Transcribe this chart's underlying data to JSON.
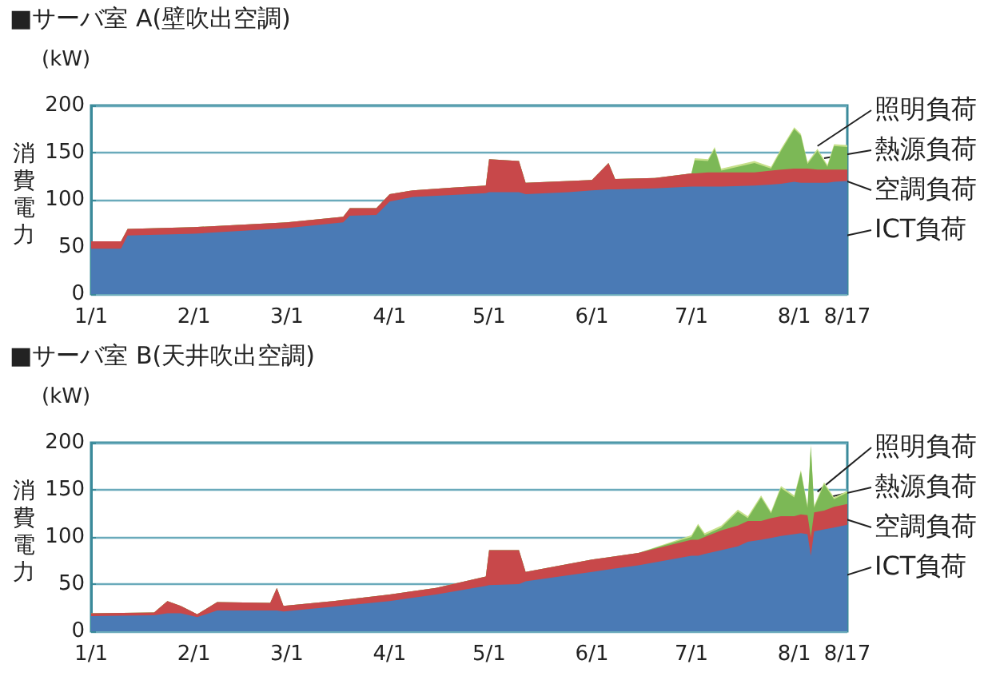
{
  "chart_data": [
    {
      "type": "area",
      "stacked": true,
      "title": "■サーバ室 A(壁吹出空調)",
      "ylabel": "消費電力",
      "annotations": [
        "(kW)"
      ],
      "x": [
        "--01-01",
        "--01-10",
        "--01-12",
        "--02-01",
        "--03-01",
        "--03-18",
        "--03-20",
        "--03-28",
        "--04-01",
        "--04-08",
        "--04-20",
        "--04-30",
        "--05-01",
        "--05-10",
        "--05-12",
        "--05-25",
        "--06-01",
        "--06-06",
        "--06-08",
        "--06-20",
        "--07-01",
        "--07-02",
        "--07-06",
        "--07-08",
        "--07-10",
        "--07-20",
        "--07-25",
        "--07-28",
        "--08-01",
        "--08-03",
        "--08-05",
        "--08-08",
        "--08-11",
        "--08-13",
        "--08-17"
      ],
      "series": [
        {
          "name": "ICT負荷",
          "color": "#4a7ab5",
          "values": [
            48,
            48,
            62,
            64,
            70,
            76,
            83,
            84,
            98,
            103,
            105,
            107,
            108,
            108,
            106,
            108,
            110,
            111,
            111,
            112,
            114,
            114,
            114,
            114,
            114,
            115,
            116,
            117,
            119,
            118,
            118,
            118,
            118,
            119,
            120
          ]
        },
        {
          "name": "空調負荷",
          "color": "#c8484a",
          "values": [
            8,
            8,
            7,
            7,
            6,
            6,
            8,
            7,
            8,
            7,
            8,
            8,
            35,
            33,
            12,
            12,
            11,
            28,
            11,
            11,
            14,
            14,
            15,
            15,
            15,
            14,
            15,
            15,
            14,
            15,
            15,
            14,
            14,
            13,
            12
          ]
        },
        {
          "name": "熱源負荷",
          "color": "#7cb856",
          "values": [
            0,
            0,
            0,
            0,
            0,
            0,
            0,
            0,
            0,
            0,
            0,
            0,
            0,
            0,
            0,
            0,
            0,
            0,
            0,
            0,
            0,
            14,
            12,
            25,
            2,
            10,
            2,
            20,
            42,
            35,
            5,
            20,
            3,
            25,
            24
          ]
        },
        {
          "name": "照明負荷",
          "color": "#c6e08a",
          "values": [
            0,
            0,
            0,
            0,
            0,
            0,
            0,
            0,
            0,
            0,
            0,
            0,
            0,
            0,
            0,
            0,
            0,
            0,
            0,
            0,
            0,
            2,
            2,
            2,
            2,
            2,
            2,
            2,
            2,
            2,
            2,
            2,
            2,
            2,
            2
          ]
        }
      ],
      "xlim": [
        "--01-01",
        "--08-17"
      ],
      "xticks": [
        {
          "value": "--01-01",
          "label": "1/1"
        },
        {
          "value": "--02-01",
          "label": "2/1"
        },
        {
          "value": "--03-01",
          "label": "3/1"
        },
        {
          "value": "--04-01",
          "label": "4/1"
        },
        {
          "value": "--05-01",
          "label": "5/1"
        },
        {
          "value": "--06-01",
          "label": "6/1"
        },
        {
          "value": "--07-01",
          "label": "7/1"
        },
        {
          "value": "--08-01",
          "label": "8/1"
        },
        {
          "value": "--08-17",
          "label": "8/17"
        }
      ],
      "ylim": [
        0,
        200
      ],
      "yticks": [
        0,
        50,
        100,
        150,
        200
      ],
      "grid": "y",
      "legend": "right"
    },
    {
      "type": "area",
      "stacked": true,
      "title": "■サーバ室 B(天井吹出空調)",
      "ylabel": "消費電力",
      "annotations": [
        "(kW)"
      ],
      "x": [
        "--01-01",
        "--01-20",
        "--01-24",
        "--01-28",
        "--02-02",
        "--02-08",
        "--02-24",
        "--02-26",
        "--02-28",
        "--03-15",
        "--04-01",
        "--04-15",
        "--04-30",
        "--05-01",
        "--05-10",
        "--05-12",
        "--06-01",
        "--06-15",
        "--07-01",
        "--07-03",
        "--07-05",
        "--07-10",
        "--07-15",
        "--07-18",
        "--07-22",
        "--07-25",
        "--07-28",
        "--08-01",
        "--08-03",
        "--08-05",
        "--08-06",
        "--08-07",
        "--08-10",
        "--08-13",
        "--08-17"
      ],
      "series": [
        {
          "name": "ICT負荷",
          "color": "#4a7ab5",
          "values": [
            16,
            17,
            19,
            19,
            15,
            22,
            22,
            22,
            21,
            26,
            32,
            39,
            48,
            49,
            50,
            53,
            63,
            70,
            80,
            80,
            82,
            86,
            90,
            95,
            97,
            99,
            101,
            103,
            104,
            103,
            80,
            106,
            108,
            110,
            113
          ]
        },
        {
          "name": "空調負荷",
          "color": "#c8484a",
          "values": [
            3,
            3,
            13,
            8,
            3,
            9,
            8,
            24,
            6,
            6,
            7,
            7,
            10,
            37,
            36,
            10,
            13,
            13,
            17,
            17,
            18,
            21,
            22,
            22,
            20,
            21,
            21,
            19,
            20,
            20,
            20,
            20,
            20,
            22,
            22
          ]
        },
        {
          "name": "熱源負荷",
          "color": "#7cb856",
          "values": [
            0,
            0,
            0,
            0,
            0,
            0,
            0,
            0,
            0,
            0,
            0,
            0,
            0,
            0,
            0,
            0,
            0,
            0,
            3,
            15,
            2,
            3,
            15,
            3,
            25,
            5,
            30,
            20,
            45,
            8,
            96,
            5,
            28,
            8,
            12
          ]
        },
        {
          "name": "照明負荷",
          "color": "#c6e08a",
          "values": [
            0,
            0,
            0,
            0,
            0,
            0,
            0,
            0,
            0,
            0,
            0,
            0,
            0,
            0,
            0,
            0,
            0,
            0,
            2,
            2,
            2,
            2,
            2,
            2,
            2,
            2,
            2,
            2,
            2,
            2,
            2,
            2,
            2,
            2,
            2
          ]
        }
      ],
      "xlim": [
        "--01-01",
        "--08-17"
      ],
      "xticks": [
        {
          "value": "--01-01",
          "label": "1/1"
        },
        {
          "value": "--02-01",
          "label": "2/1"
        },
        {
          "value": "--03-01",
          "label": "3/1"
        },
        {
          "value": "--04-01",
          "label": "4/1"
        },
        {
          "value": "--05-01",
          "label": "5/1"
        },
        {
          "value": "--06-01",
          "label": "6/1"
        },
        {
          "value": "--07-01",
          "label": "7/1"
        },
        {
          "value": "--08-01",
          "label": "8/1"
        },
        {
          "value": "--08-17",
          "label": "8/17"
        }
      ],
      "ylim": [
        0,
        200
      ],
      "yticks": [
        0,
        50,
        100,
        150,
        200
      ],
      "grid": "y",
      "legend": "right"
    }
  ]
}
